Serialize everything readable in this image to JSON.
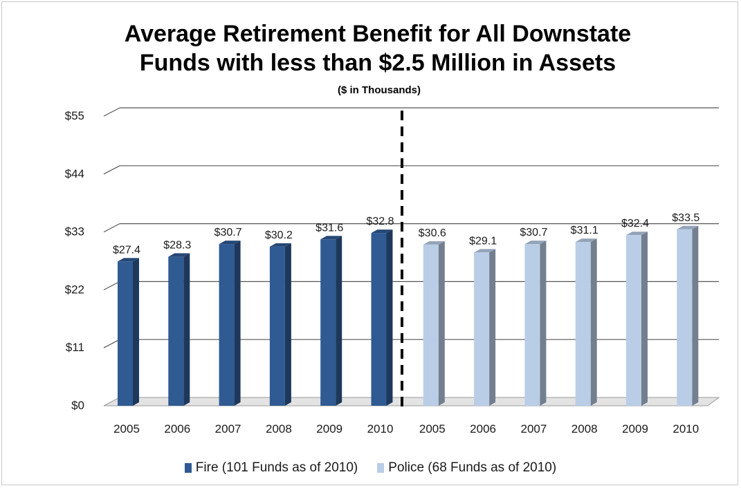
{
  "chart_data": {
    "type": "bar",
    "title": "Average Retirement Benefit for All Downstate\nFunds with less than $2.5 Million in Assets",
    "subtitle": "($ in Thousands)",
    "ylim": [
      0,
      55
    ],
    "y_ticks": [
      "$0",
      "$11",
      "$22",
      "$33",
      "$44",
      "$55"
    ],
    "grid": true,
    "legend_position": "bottom",
    "groups": [
      {
        "name": "Fire (101 Funds as of 2010)",
        "color": "#2f5a92",
        "categories": [
          "2005",
          "2006",
          "2007",
          "2008",
          "2009",
          "2010"
        ],
        "values": [
          27.4,
          28.3,
          30.7,
          30.2,
          31.6,
          32.8
        ],
        "labels": [
          "$27.4",
          "$28.3",
          "$30.7",
          "$30.2",
          "$31.6",
          "$32.8"
        ]
      },
      {
        "name": "Police (68 Funds as of 2010)",
        "color": "#b9cde6",
        "categories": [
          "2005",
          "2006",
          "2007",
          "2008",
          "2009",
          "2010"
        ],
        "values": [
          30.6,
          29.1,
          30.7,
          31.1,
          32.4,
          33.5
        ],
        "labels": [
          "$30.6",
          "$29.1",
          "$30.7",
          "$31.1",
          "$32.4",
          "$33.5"
        ]
      }
    ],
    "divider": "dashed vertical line between the two groups"
  }
}
